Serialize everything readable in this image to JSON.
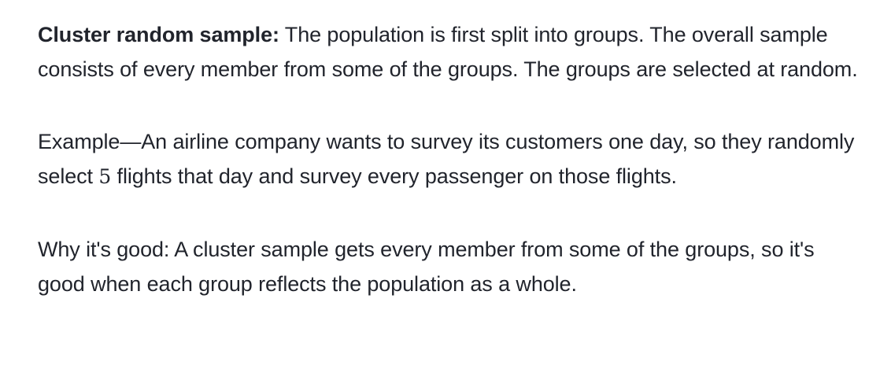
{
  "definition": {
    "term": "Cluster random sample:",
    "text": " The population is first split into groups. The overall sample consists of every member from some of the groups. The groups are selected at random."
  },
  "example": {
    "before": "Example—An airline company wants to survey its customers one day, so they randomly select ",
    "number": "5",
    "after": " flights that day and survey every passenger on those flights."
  },
  "why": {
    "text": "Why it's good: A cluster sample gets every member from some of the groups, so it's good when each group reflects the population as a whole."
  }
}
